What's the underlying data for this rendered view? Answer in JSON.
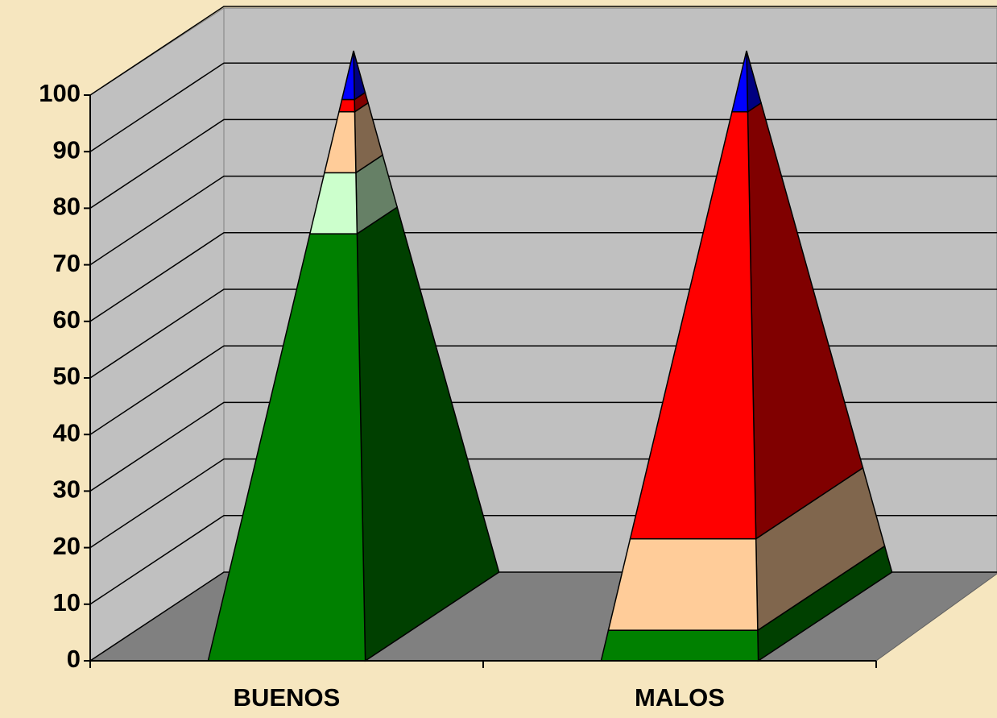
{
  "chart_data": {
    "type": "pyramid3d",
    "categories": [
      "BUENOS",
      "MALOS"
    ],
    "series": [
      {
        "color": "#008000",
        "values": [
          70,
          5
        ]
      },
      {
        "color": "#ccffcc",
        "values": [
          10,
          0
        ]
      },
      {
        "color": "#ffcc99",
        "values": [
          10,
          15
        ]
      },
      {
        "color": "#ff0000",
        "values": [
          2,
          70
        ]
      },
      {
        "color": "#0000ff",
        "values": [
          8,
          10
        ]
      }
    ],
    "ylim": [
      0,
      100
    ],
    "yticks": [
      0,
      10,
      20,
      30,
      40,
      50,
      60,
      70,
      80,
      90,
      100
    ],
    "grid": true
  }
}
